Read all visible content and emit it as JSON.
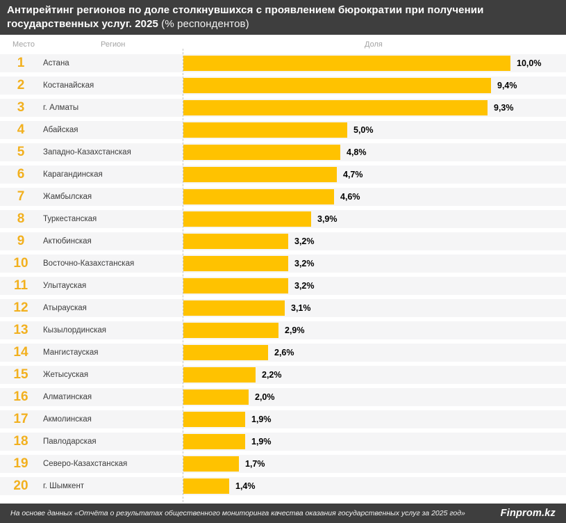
{
  "header": {
    "line1": "Антирейтинг регионов по доле столкнувшихся с проявлением бюрократии при получении",
    "line2_bold": "государственных услуг. 2025",
    "line2_normal": "(% респондентов)"
  },
  "columns": {
    "place": "Место",
    "region": "Регион",
    "share": "Доля"
  },
  "chart_data": {
    "type": "bar",
    "orientation": "horizontal",
    "title": "Антирейтинг регионов по доле столкнувшихся с проявлением бюрократии при получении государственных услуг. 2025 (% респондентов)",
    "unit": "% респондентов",
    "xlim": [
      0,
      10
    ],
    "grid": false,
    "legend": "none",
    "ranks": [
      1,
      2,
      3,
      4,
      5,
      6,
      7,
      8,
      9,
      10,
      11,
      12,
      13,
      14,
      15,
      16,
      17,
      18,
      19,
      20
    ],
    "categories": [
      "Астана",
      "Костанайская",
      "г. Алматы",
      "Абайская",
      "Западно-Казахстанская",
      "Карагандинская",
      "Жамбылская",
      "Туркестанская",
      "Актюбинская",
      "Восточно-Казахстанская",
      "Улытауская",
      "Атырауская",
      "Кызылординская",
      "Мангистауская",
      "Жетысуская",
      "Алматинская",
      "Акмолинская",
      "Павлодарская",
      "Северо-Казахстанская",
      "г. Шымкент"
    ],
    "values": [
      10.0,
      9.4,
      9.3,
      5.0,
      4.8,
      4.7,
      4.6,
      3.9,
      3.2,
      3.2,
      3.2,
      3.1,
      2.9,
      2.6,
      2.2,
      2.0,
      1.9,
      1.9,
      1.7,
      1.4
    ],
    "value_labels": [
      "10,0%",
      "9,4%",
      "9,3%",
      "5,0%",
      "4,8%",
      "4,7%",
      "4,6%",
      "3,9%",
      "3,2%",
      "3,2%",
      "3,2%",
      "3,1%",
      "2,9%",
      "2,6%",
      "2,2%",
      "2,0%",
      "1,9%",
      "1,9%",
      "1,7%",
      "1,4%"
    ],
    "bar_color": "#FFC200",
    "rank_color": "#F2B01E"
  },
  "footer": {
    "source": "На основе данных «Отчёта о результатах общественного мониторинга качества оказания государственных услуг за 2025 год»",
    "brand": "Finprom.kz"
  }
}
